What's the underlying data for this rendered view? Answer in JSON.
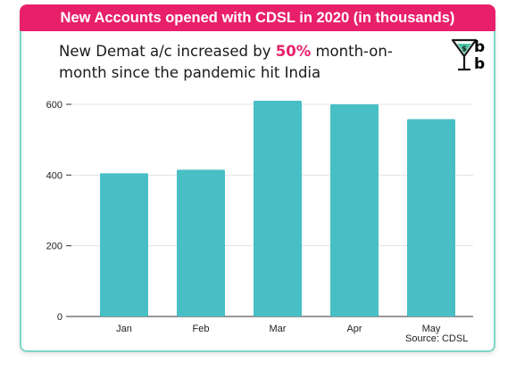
{
  "header": {
    "title": "New Accounts opened with CDSL in 2020 (in thousands)"
  },
  "subtitle": {
    "prefix": "New Demat a/c increased by ",
    "highlight": "50%",
    "suffix": " month-on-month since the pandemic hit India"
  },
  "logo": {
    "letter_top": "b",
    "letter_bottom": "b",
    "icon": "cocktail-glass-icon"
  },
  "source": "Source: CDSL",
  "colors": {
    "bar": "#48bfc5",
    "accent": "#e8206a",
    "border": "#7fd6c8",
    "grid": "#e3e3e3"
  },
  "chart_data": {
    "type": "bar",
    "categories": [
      "Jan",
      "Feb",
      "Mar",
      "Apr",
      "May"
    ],
    "values": [
      405,
      415,
      610,
      600,
      558
    ],
    "ylim": [
      0,
      600
    ],
    "yticks": [
      0,
      200,
      400,
      600
    ],
    "grid": true
  }
}
